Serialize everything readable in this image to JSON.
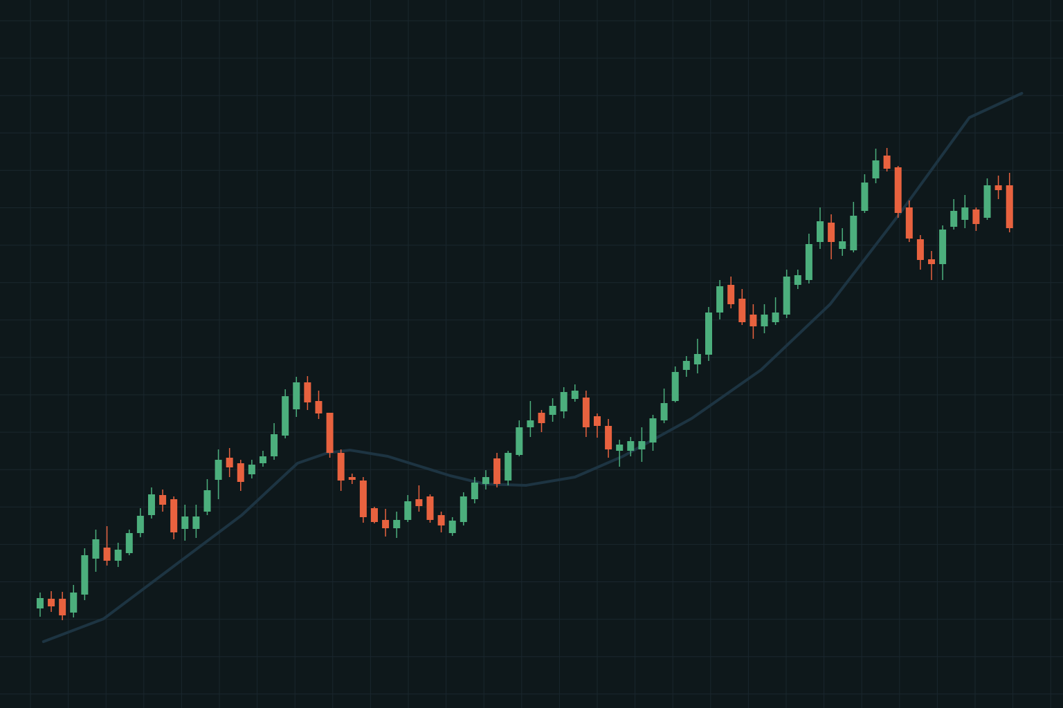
{
  "chart_data": {
    "type": "candlestick",
    "background": "#0e181b",
    "grid": true,
    "grid_color": "#1a272e",
    "up_color": "#4caf7d",
    "down_color": "#e8623f",
    "xlim": [
      -3.6,
      91.8
    ],
    "ylim": [
      0,
      1024
    ],
    "open": [
      144,
      158,
      158,
      138,
      164,
      216,
      232,
      213,
      224,
      253,
      279,
      308,
      302,
      259,
      259,
      284,
      330,
      362,
      354,
      338,
      354,
      364,
      394,
      432,
      471,
      444,
      427,
      369,
      334,
      329,
      289,
      272,
      260,
      272,
      302,
      306,
      279,
      253,
      269,
      302,
      324,
      361,
      329,
      366,
      406,
      427,
      424,
      429,
      447,
      449,
      422,
      408,
      372,
      372,
      374,
      384,
      416,
      444,
      489,
      497,
      511,
      572,
      612,
      592,
      569,
      552,
      558,
      569,
      612,
      619,
      674,
      702,
      664,
      662,
      719,
      766,
      799,
      782,
      724,
      678,
      649,
      642,
      696,
      706,
      721,
      709,
      756,
      756
    ],
    "high": [
      167,
      169,
      168,
      178,
      231,
      258,
      263,
      239,
      258,
      289,
      319,
      316,
      306,
      294,
      294,
      331,
      374,
      376,
      359,
      359,
      372,
      412,
      461,
      479,
      480,
      459,
      427,
      374,
      339,
      334,
      291,
      288,
      284,
      308,
      322,
      309,
      284,
      276,
      312,
      334,
      344,
      369,
      372,
      416,
      444,
      431,
      448,
      464,
      468,
      459,
      426,
      418,
      388,
      392,
      406,
      424,
      462,
      494,
      509,
      534,
      580,
      619,
      624,
      606,
      584,
      584,
      594,
      634,
      634,
      686,
      724,
      714,
      694,
      732,
      772,
      809,
      810,
      784,
      734,
      684,
      661,
      698,
      736,
      742,
      724,
      766,
      770,
      774
    ],
    "low": [
      132,
      139,
      127,
      131,
      156,
      197,
      206,
      204,
      221,
      247,
      274,
      284,
      244,
      242,
      246,
      279,
      302,
      334,
      314,
      332,
      349,
      359,
      390,
      421,
      431,
      418,
      362,
      314,
      324,
      268,
      267,
      248,
      246,
      269,
      284,
      268,
      254,
      249,
      264,
      296,
      316,
      319,
      322,
      364,
      392,
      399,
      414,
      419,
      443,
      392,
      391,
      362,
      349,
      364,
      356,
      372,
      412,
      442,
      479,
      484,
      502,
      562,
      578,
      554,
      534,
      542,
      554,
      564,
      606,
      614,
      664,
      649,
      654,
      659,
      716,
      759,
      776,
      709,
      674,
      634,
      619,
      619,
      692,
      694,
      690,
      706,
      736,
      688
    ],
    "close": [
      159,
      147,
      134,
      167,
      221,
      244,
      213,
      229,
      253,
      278,
      309,
      294,
      254,
      277,
      277,
      315,
      359,
      348,
      327,
      352,
      364,
      396,
      451,
      471,
      442,
      426,
      369,
      329,
      330,
      276,
      269,
      260,
      272,
      299,
      292,
      272,
      264,
      271,
      306,
      326,
      334,
      324,
      369,
      406,
      416,
      412,
      437,
      457,
      459,
      406,
      408,
      374,
      381,
      386,
      386,
      419,
      441,
      486,
      502,
      512,
      572,
      610,
      584,
      558,
      552,
      569,
      572,
      624,
      626,
      671,
      704,
      674,
      675,
      712,
      760,
      792,
      780,
      716,
      679,
      648,
      642,
      692,
      719,
      724,
      700,
      756,
      749,
      694
    ],
    "moving_average": {
      "color": "#1d3442",
      "x": [
        0.3,
        5.7,
        11.9,
        18.1,
        23.1,
        25.8,
        27.8,
        31.2,
        36.8,
        39.9,
        43.6,
        48.0,
        52.3,
        58.5,
        64.7,
        70.9,
        77.1,
        83.4,
        88.1
      ],
      "values": [
        96,
        129,
        204,
        279,
        354,
        369,
        373,
        364,
        336,
        324,
        322,
        334,
        364,
        419,
        489,
        584,
        714,
        854,
        889
      ]
    }
  }
}
